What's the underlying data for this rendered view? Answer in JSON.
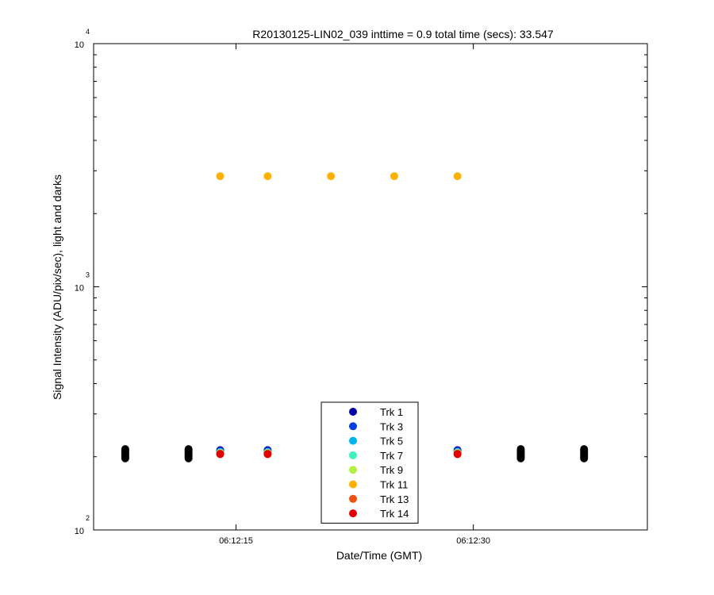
{
  "chart_data": {
    "type": "scatter",
    "title": "R20130125-LIN02_039 inttime = 0.9 total time (secs): 33.547",
    "xlabel": "Date/Time (GMT)",
    "ylabel": "Signal Intensity (ADU/pix/sec), light and darks",
    "y_scale": "log",
    "ylim": [
      100,
      10000
    ],
    "y_ticks": [
      {
        "base": "10",
        "exp": "2",
        "value": 100
      },
      {
        "base": "10",
        "exp": "3",
        "value": 1000
      },
      {
        "base": "10",
        "exp": "4",
        "value": 10000
      }
    ],
    "xlim": [
      "06:12:06",
      "06:12:41"
    ],
    "x_ticks": [
      "06:12:15",
      "06:12:30"
    ],
    "grid": false,
    "legend_position": "bottom-center",
    "series": [
      {
        "name": "Trk 1",
        "color": "#0000a8",
        "points": [
          [
            "06:12:14",
            213
          ],
          [
            "06:12:17",
            213
          ],
          [
            "06:12:29",
            213
          ]
        ]
      },
      {
        "name": "Trk 3",
        "color": "#0040e0",
        "points": [
          [
            "06:12:14",
            211
          ],
          [
            "06:12:17",
            211
          ],
          [
            "06:12:29",
            211
          ]
        ]
      },
      {
        "name": "Trk 5",
        "color": "#00b4f0",
        "points": [
          [
            "06:12:14",
            209
          ],
          [
            "06:12:17",
            209
          ],
          [
            "06:12:29",
            209
          ]
        ]
      },
      {
        "name": "Trk 7",
        "color": "#40f0c0",
        "points": [
          [
            "06:12:14",
            208
          ],
          [
            "06:12:17",
            208
          ],
          [
            "06:12:29",
            208
          ]
        ]
      },
      {
        "name": "Trk 9",
        "color": "#b0f040",
        "points": [
          [
            "06:12:14",
            207
          ],
          [
            "06:12:17",
            207
          ],
          [
            "06:12:29",
            207
          ]
        ]
      },
      {
        "name": "Trk 11",
        "color": "#ffb000",
        "points": [
          [
            "06:12:14",
            2850
          ],
          [
            "06:12:17",
            2850
          ],
          [
            "06:12:21",
            2850
          ],
          [
            "06:12:25",
            2850
          ],
          [
            "06:12:29",
            2850
          ]
        ]
      },
      {
        "name": "Trk 13",
        "color": "#f05010",
        "points": [
          [
            "06:12:14",
            206
          ],
          [
            "06:12:17",
            206
          ],
          [
            "06:12:29",
            206
          ]
        ]
      },
      {
        "name": "Trk 14",
        "color": "#e00000",
        "points": [
          [
            "06:12:14",
            205
          ],
          [
            "06:12:17",
            205
          ],
          [
            "06:12:29",
            205
          ]
        ]
      }
    ],
    "dark_frames": {
      "color": "#000000",
      "x": [
        "06:12:08",
        "06:12:12",
        "06:12:33",
        "06:12:37"
      ],
      "y_range": [
        197,
        215
      ]
    }
  }
}
